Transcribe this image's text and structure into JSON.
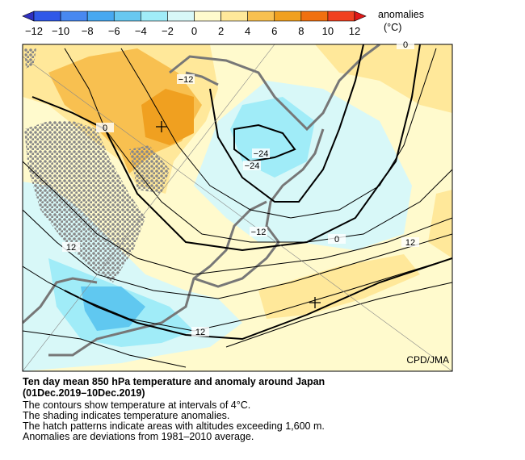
{
  "colorbar": {
    "labels": [
      "−12",
      "−10",
      "−8",
      "−6",
      "−4",
      "−2",
      "0",
      "2",
      "4",
      "6",
      "8",
      "10",
      "12"
    ],
    "title": "anomalies",
    "unit": "(°C)"
  },
  "map": {
    "contour_labels": [
      "0",
      "−12",
      "0",
      "−24",
      "−24",
      "−12",
      "0",
      "12",
      "12",
      "12"
    ],
    "credit": "CPD/JMA"
  },
  "caption": {
    "title": "Ten day mean 850 hPa temperature and anomaly around Japan",
    "period": "(01Dec.2019–10Dec.2019)",
    "lines": [
      "The contours show temperature at intervals of 4°C.",
      "The shading indicates temperature anomalies.",
      "The hatch patterns indicate areas with altitudes exceeding 1,600 m.",
      "Anomalies are deviations from 1981–2010 average."
    ]
  }
}
